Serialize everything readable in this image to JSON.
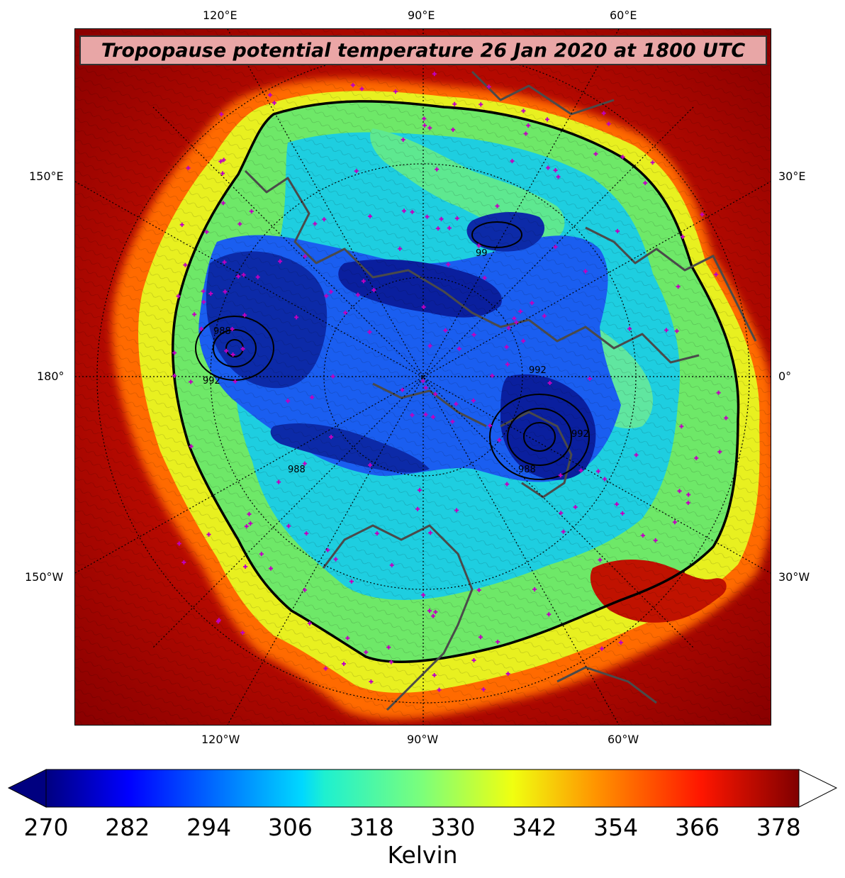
{
  "title": "Tropopause potential temperature 26 Jan 2020 at 1800 UTC",
  "colors": {
    "outer_red": "#a00000",
    "hole_blue": "#1540d8",
    "core_navy": "#0a1a9a",
    "cyan": "#10d4e8",
    "green": "#78f070",
    "yellow": "#f0f020",
    "orange": "#ff8a00",
    "coastline": "#4a4a4a",
    "station_marker": "#c000c0"
  },
  "longitude_labels": {
    "top": [
      "120°E",
      "90°E",
      "60°E"
    ],
    "bottom": [
      "120°W",
      "90°W",
      "60°W"
    ],
    "left": [
      "150°E",
      "180°",
      "150°W"
    ],
    "right": [
      "30°E",
      "0°",
      "30°W"
    ]
  },
  "contour_labels": [
    "992",
    "988",
    "992",
    "988",
    "992",
    "988",
    "99"
  ],
  "colorbar": {
    "label": "Kelvin",
    "ticks": [
      "270",
      "282",
      "294",
      "306",
      "318",
      "330",
      "342",
      "354",
      "366",
      "378"
    ],
    "min": 270,
    "max": 381,
    "colormap": "jet",
    "extend": "both"
  }
}
